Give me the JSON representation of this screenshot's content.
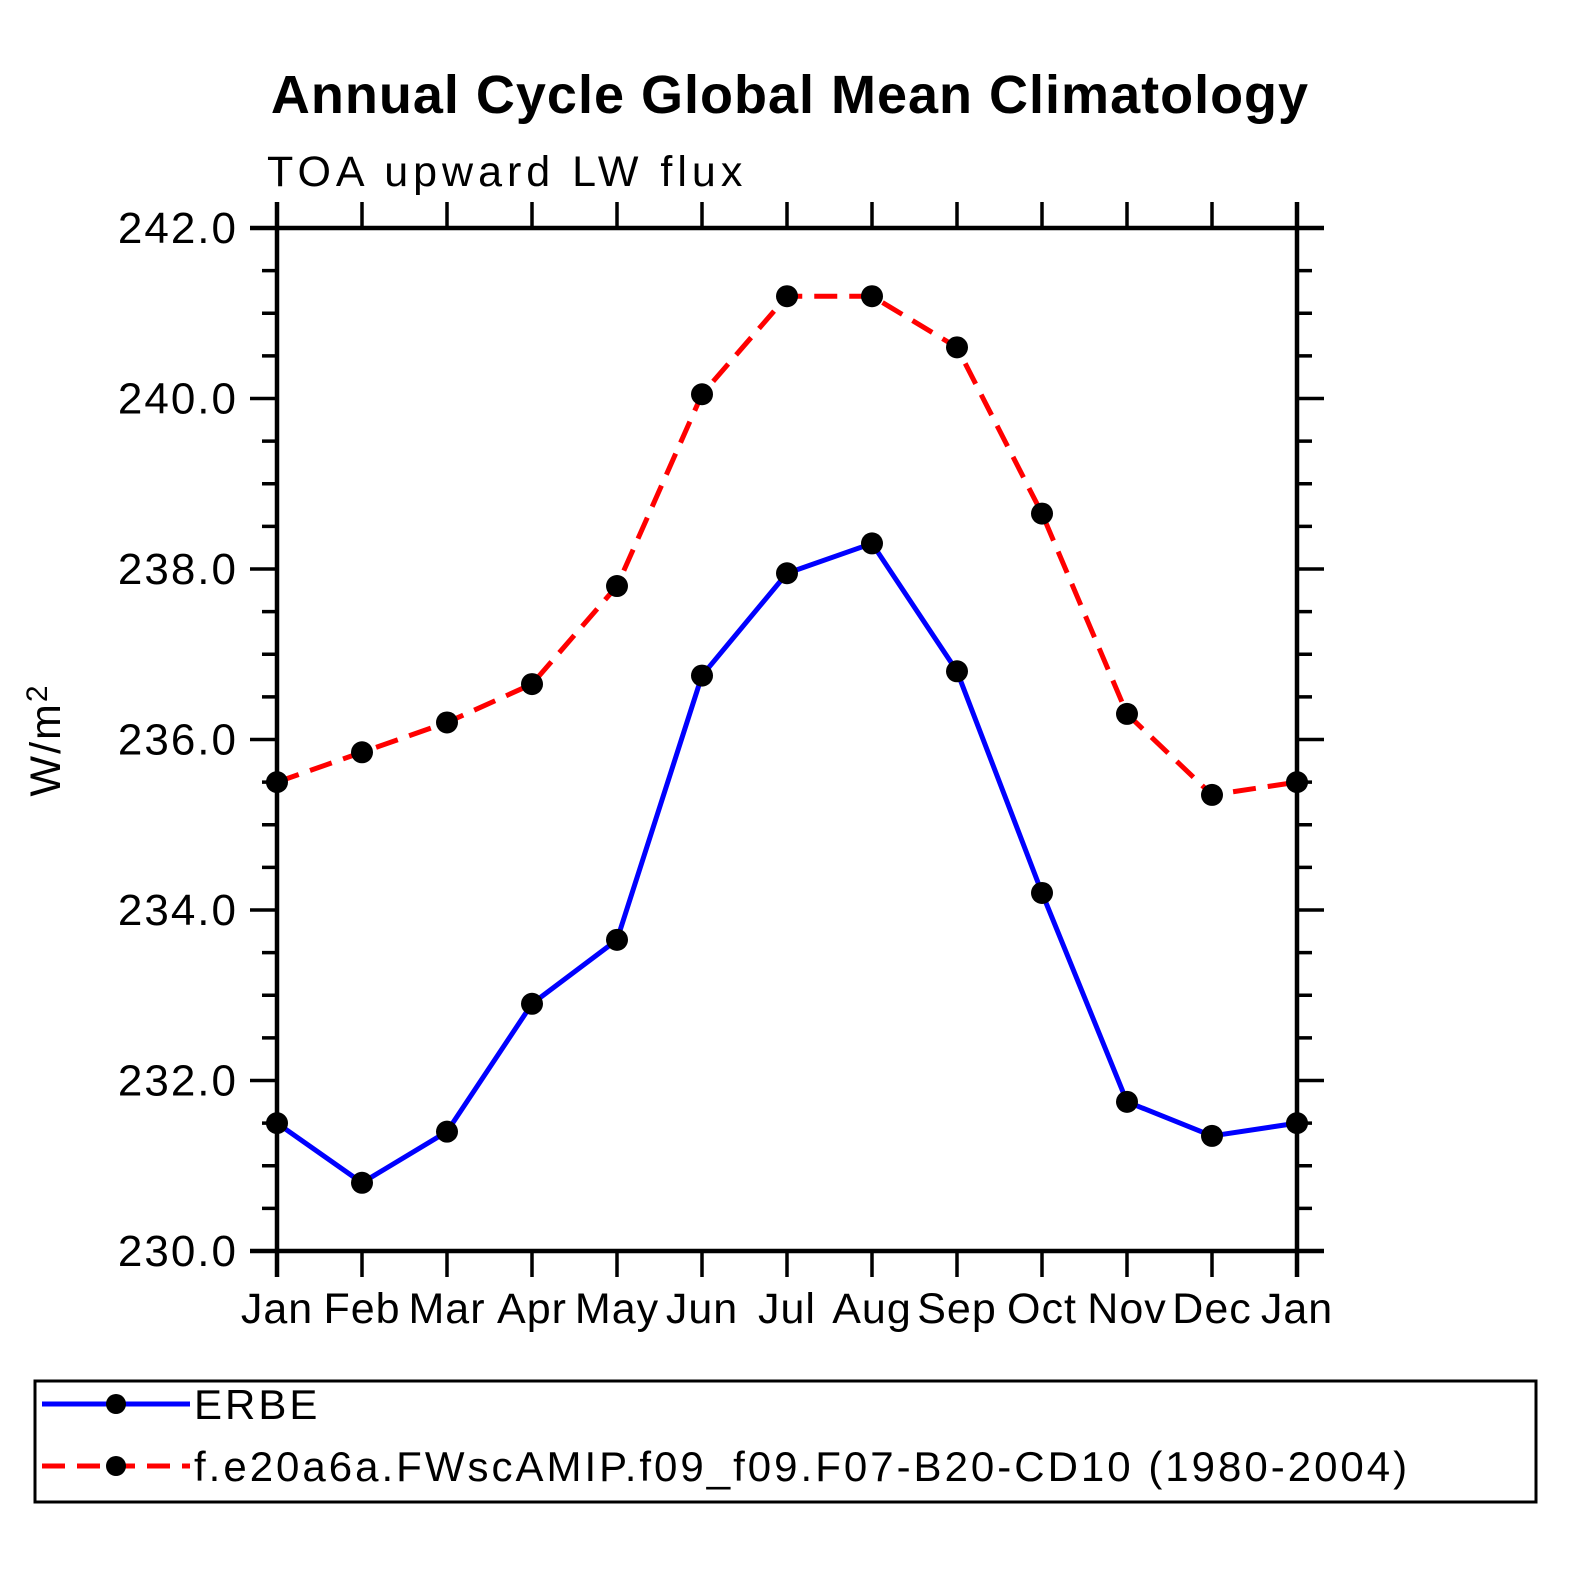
{
  "page": {
    "background_color": "#ffffff"
  },
  "chart_data": {
    "type": "line",
    "title": "Annual Cycle Global Mean Climatology",
    "subtitle": "TOA upward LW flux",
    "ylabel": "W/m²",
    "ylabel_main": "W/m",
    "ylabel_sup": "2",
    "xlabel": "",
    "categories": [
      "Jan",
      "Feb",
      "Mar",
      "Apr",
      "May",
      "Jun",
      "Jul",
      "Aug",
      "Sep",
      "Oct",
      "Nov",
      "Dec",
      "Jan"
    ],
    "ylim": [
      230.0,
      242.0
    ],
    "ytick_major_step": 2.0,
    "ytick_minor_step": 0.5,
    "ytick_labels": [
      "230.0",
      "232.0",
      "234.0",
      "236.0",
      "238.0",
      "240.0",
      "242.0"
    ],
    "grid": false,
    "legend_position": "bottom-left-box",
    "axis_color": "#000000",
    "marker_color": "#000000",
    "series": [
      {
        "name": "ERBE",
        "color": "#0000ff",
        "line_style": "solid",
        "marker": "filled-circle",
        "values": [
          231.5,
          230.8,
          231.4,
          232.9,
          233.65,
          236.75,
          237.95,
          238.3,
          236.8,
          234.2,
          231.75,
          231.35,
          231.5
        ]
      },
      {
        "name": "f.e20a6a.FWscAMIP.f09_f09.F07-B20-CD10 (1980-2004)",
        "color": "#ff0000",
        "line_style": "dashed",
        "marker": "filled-circle",
        "values": [
          235.5,
          235.85,
          236.2,
          236.65,
          237.8,
          240.05,
          241.2,
          241.2,
          240.6,
          238.65,
          236.3,
          235.35,
          235.5
        ]
      }
    ]
  }
}
